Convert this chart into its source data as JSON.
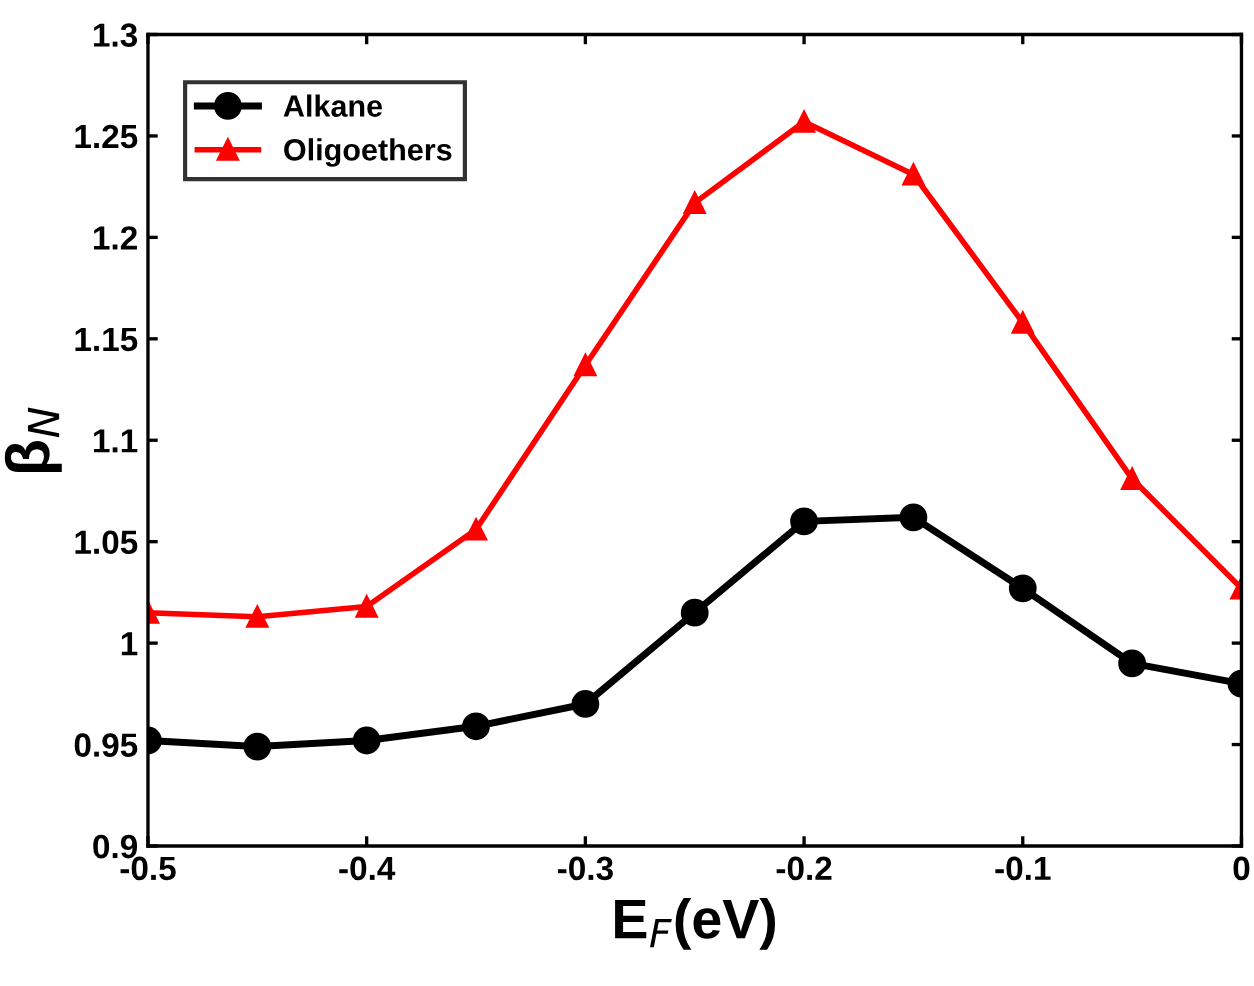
{
  "chart_data": {
    "type": "line",
    "xlabel": "E$_{F}$(eV)",
    "ylabel": "β$_{N}$",
    "x": [
      -0.5,
      -0.45,
      -0.4,
      -0.35,
      -0.3,
      -0.25,
      -0.2,
      -0.15,
      -0.1,
      -0.05,
      0
    ],
    "series": [
      {
        "name": "Alkane",
        "color": "#000000",
        "marker": "circle",
        "values": [
          0.952,
          0.949,
          0.952,
          0.959,
          0.97,
          1.015,
          1.06,
          1.062,
          1.027,
          0.99,
          0.98
        ]
      },
      {
        "name": "Oligoethers",
        "color": "#ff0000",
        "marker": "triangle",
        "values": [
          1.015,
          1.013,
          1.018,
          1.056,
          1.137,
          1.217,
          1.257,
          1.231,
          1.158,
          1.081,
          1.027
        ]
      }
    ],
    "xlim": [
      -0.5,
      0
    ],
    "xticks": [
      -0.5,
      -0.4,
      -0.3,
      -0.2,
      -0.1,
      0
    ],
    "ylim": [
      0.9,
      1.3
    ],
    "yticks": [
      0.9,
      0.95,
      1,
      1.05,
      1.1,
      1.15,
      1.2,
      1.25,
      1.3
    ],
    "grid": false,
    "legend": "top left",
    "line_style": "solid"
  }
}
